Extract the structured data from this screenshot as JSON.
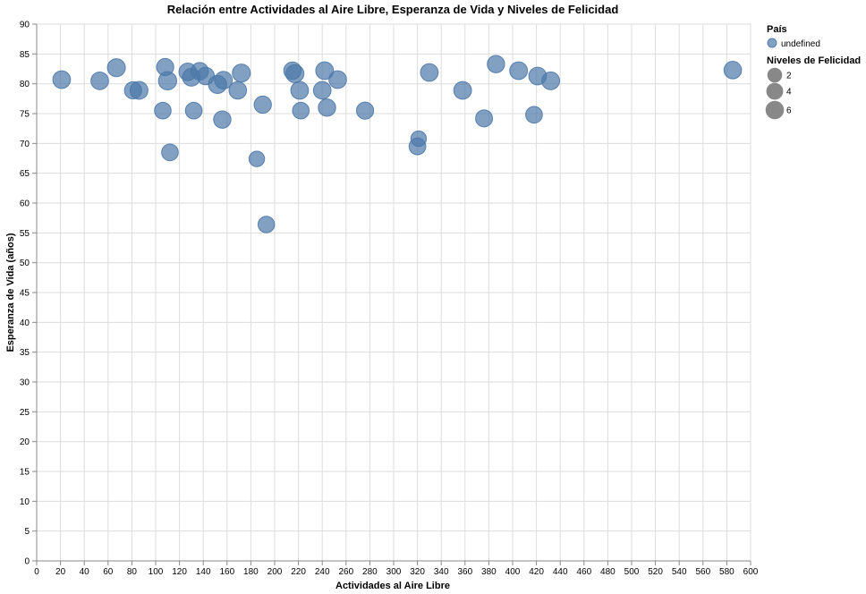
{
  "chart_data": {
    "type": "scatter",
    "title": "Relación entre Actividades al Aire Libre, Esperanza de Vida y Niveles de Felicidad",
    "xlabel": "Actividades al Aire Libre",
    "ylabel": "Esperanza de Vida (años)",
    "xlim": [
      0,
      600
    ],
    "ylim": [
      0,
      90
    ],
    "x_ticks": [
      0,
      20,
      40,
      60,
      80,
      100,
      120,
      140,
      160,
      180,
      200,
      220,
      240,
      260,
      280,
      300,
      320,
      340,
      360,
      380,
      400,
      420,
      440,
      460,
      480,
      500,
      520,
      540,
      560,
      580,
      600
    ],
    "y_ticks": [
      0,
      5,
      10,
      15,
      20,
      25,
      30,
      35,
      40,
      45,
      50,
      55,
      60,
      65,
      70,
      75,
      80,
      85,
      90
    ],
    "grid": true,
    "legend_position": "right",
    "point_color": "#4c78a8",
    "legend": {
      "color_title": "País",
      "color_entries": [
        "undefined"
      ],
      "size_title": "Niveles de Felicidad",
      "size_entries": [
        2,
        4,
        6
      ]
    },
    "points": [
      {
        "x": 21,
        "y": 80.7,
        "size": 6.2
      },
      {
        "x": 53,
        "y": 80.5,
        "size": 6.2
      },
      {
        "x": 67,
        "y": 82.7,
        "size": 6.6
      },
      {
        "x": 81,
        "y": 78.9,
        "size": 5.6
      },
      {
        "x": 86,
        "y": 78.9,
        "size": 6.6
      },
      {
        "x": 106,
        "y": 75.5,
        "size": 4.8
      },
      {
        "x": 108,
        "y": 82.8,
        "size": 5.5
      },
      {
        "x": 110,
        "y": 80.5,
        "size": 7.0
      },
      {
        "x": 112,
        "y": 68.5,
        "size": 4.9
      },
      {
        "x": 127,
        "y": 82.0,
        "size": 6.2
      },
      {
        "x": 130,
        "y": 81.1,
        "size": 6.4
      },
      {
        "x": 132,
        "y": 75.5,
        "size": 4.9
      },
      {
        "x": 137,
        "y": 82.1,
        "size": 5.9
      },
      {
        "x": 142,
        "y": 81.3,
        "size": 5.9
      },
      {
        "x": 152,
        "y": 79.9,
        "size": 6.9
      },
      {
        "x": 156,
        "y": 74.0,
        "size": 5.8
      },
      {
        "x": 157,
        "y": 80.6,
        "size": 6.2
      },
      {
        "x": 169,
        "y": 78.9,
        "size": 6.0
      },
      {
        "x": 172,
        "y": 81.8,
        "size": 6.7
      },
      {
        "x": 185,
        "y": 67.4,
        "size": 3.6
      },
      {
        "x": 190,
        "y": 76.5,
        "size": 5.7
      },
      {
        "x": 193,
        "y": 56.4,
        "size": 4.7
      },
      {
        "x": 215,
        "y": 82.2,
        "size": 5.9
      },
      {
        "x": 217,
        "y": 81.7,
        "size": 6.8
      },
      {
        "x": 221,
        "y": 78.9,
        "size": 6.2
      },
      {
        "x": 222,
        "y": 75.5,
        "size": 4.8
      },
      {
        "x": 240,
        "y": 78.9,
        "size": 6.1
      },
      {
        "x": 242,
        "y": 82.2,
        "size": 6.4
      },
      {
        "x": 244,
        "y": 76.0,
        "size": 5.8
      },
      {
        "x": 253,
        "y": 80.7,
        "size": 6.2
      },
      {
        "x": 276,
        "y": 75.5,
        "size": 5.5
      },
      {
        "x": 320,
        "y": 69.5,
        "size": 5.0
      },
      {
        "x": 321,
        "y": 70.8,
        "size": 3.5
      },
      {
        "x": 330,
        "y": 81.9,
        "size": 6.2
      },
      {
        "x": 358,
        "y": 78.9,
        "size": 6.3
      },
      {
        "x": 376,
        "y": 74.2,
        "size": 5.3
      },
      {
        "x": 386,
        "y": 83.3,
        "size": 5.8
      },
      {
        "x": 405,
        "y": 82.2,
        "size": 6.4
      },
      {
        "x": 418,
        "y": 74.8,
        "size": 4.9
      },
      {
        "x": 421,
        "y": 81.3,
        "size": 6.2
      },
      {
        "x": 432,
        "y": 80.5,
        "size": 6.4
      },
      {
        "x": 585,
        "y": 82.3,
        "size": 6.0
      }
    ]
  }
}
